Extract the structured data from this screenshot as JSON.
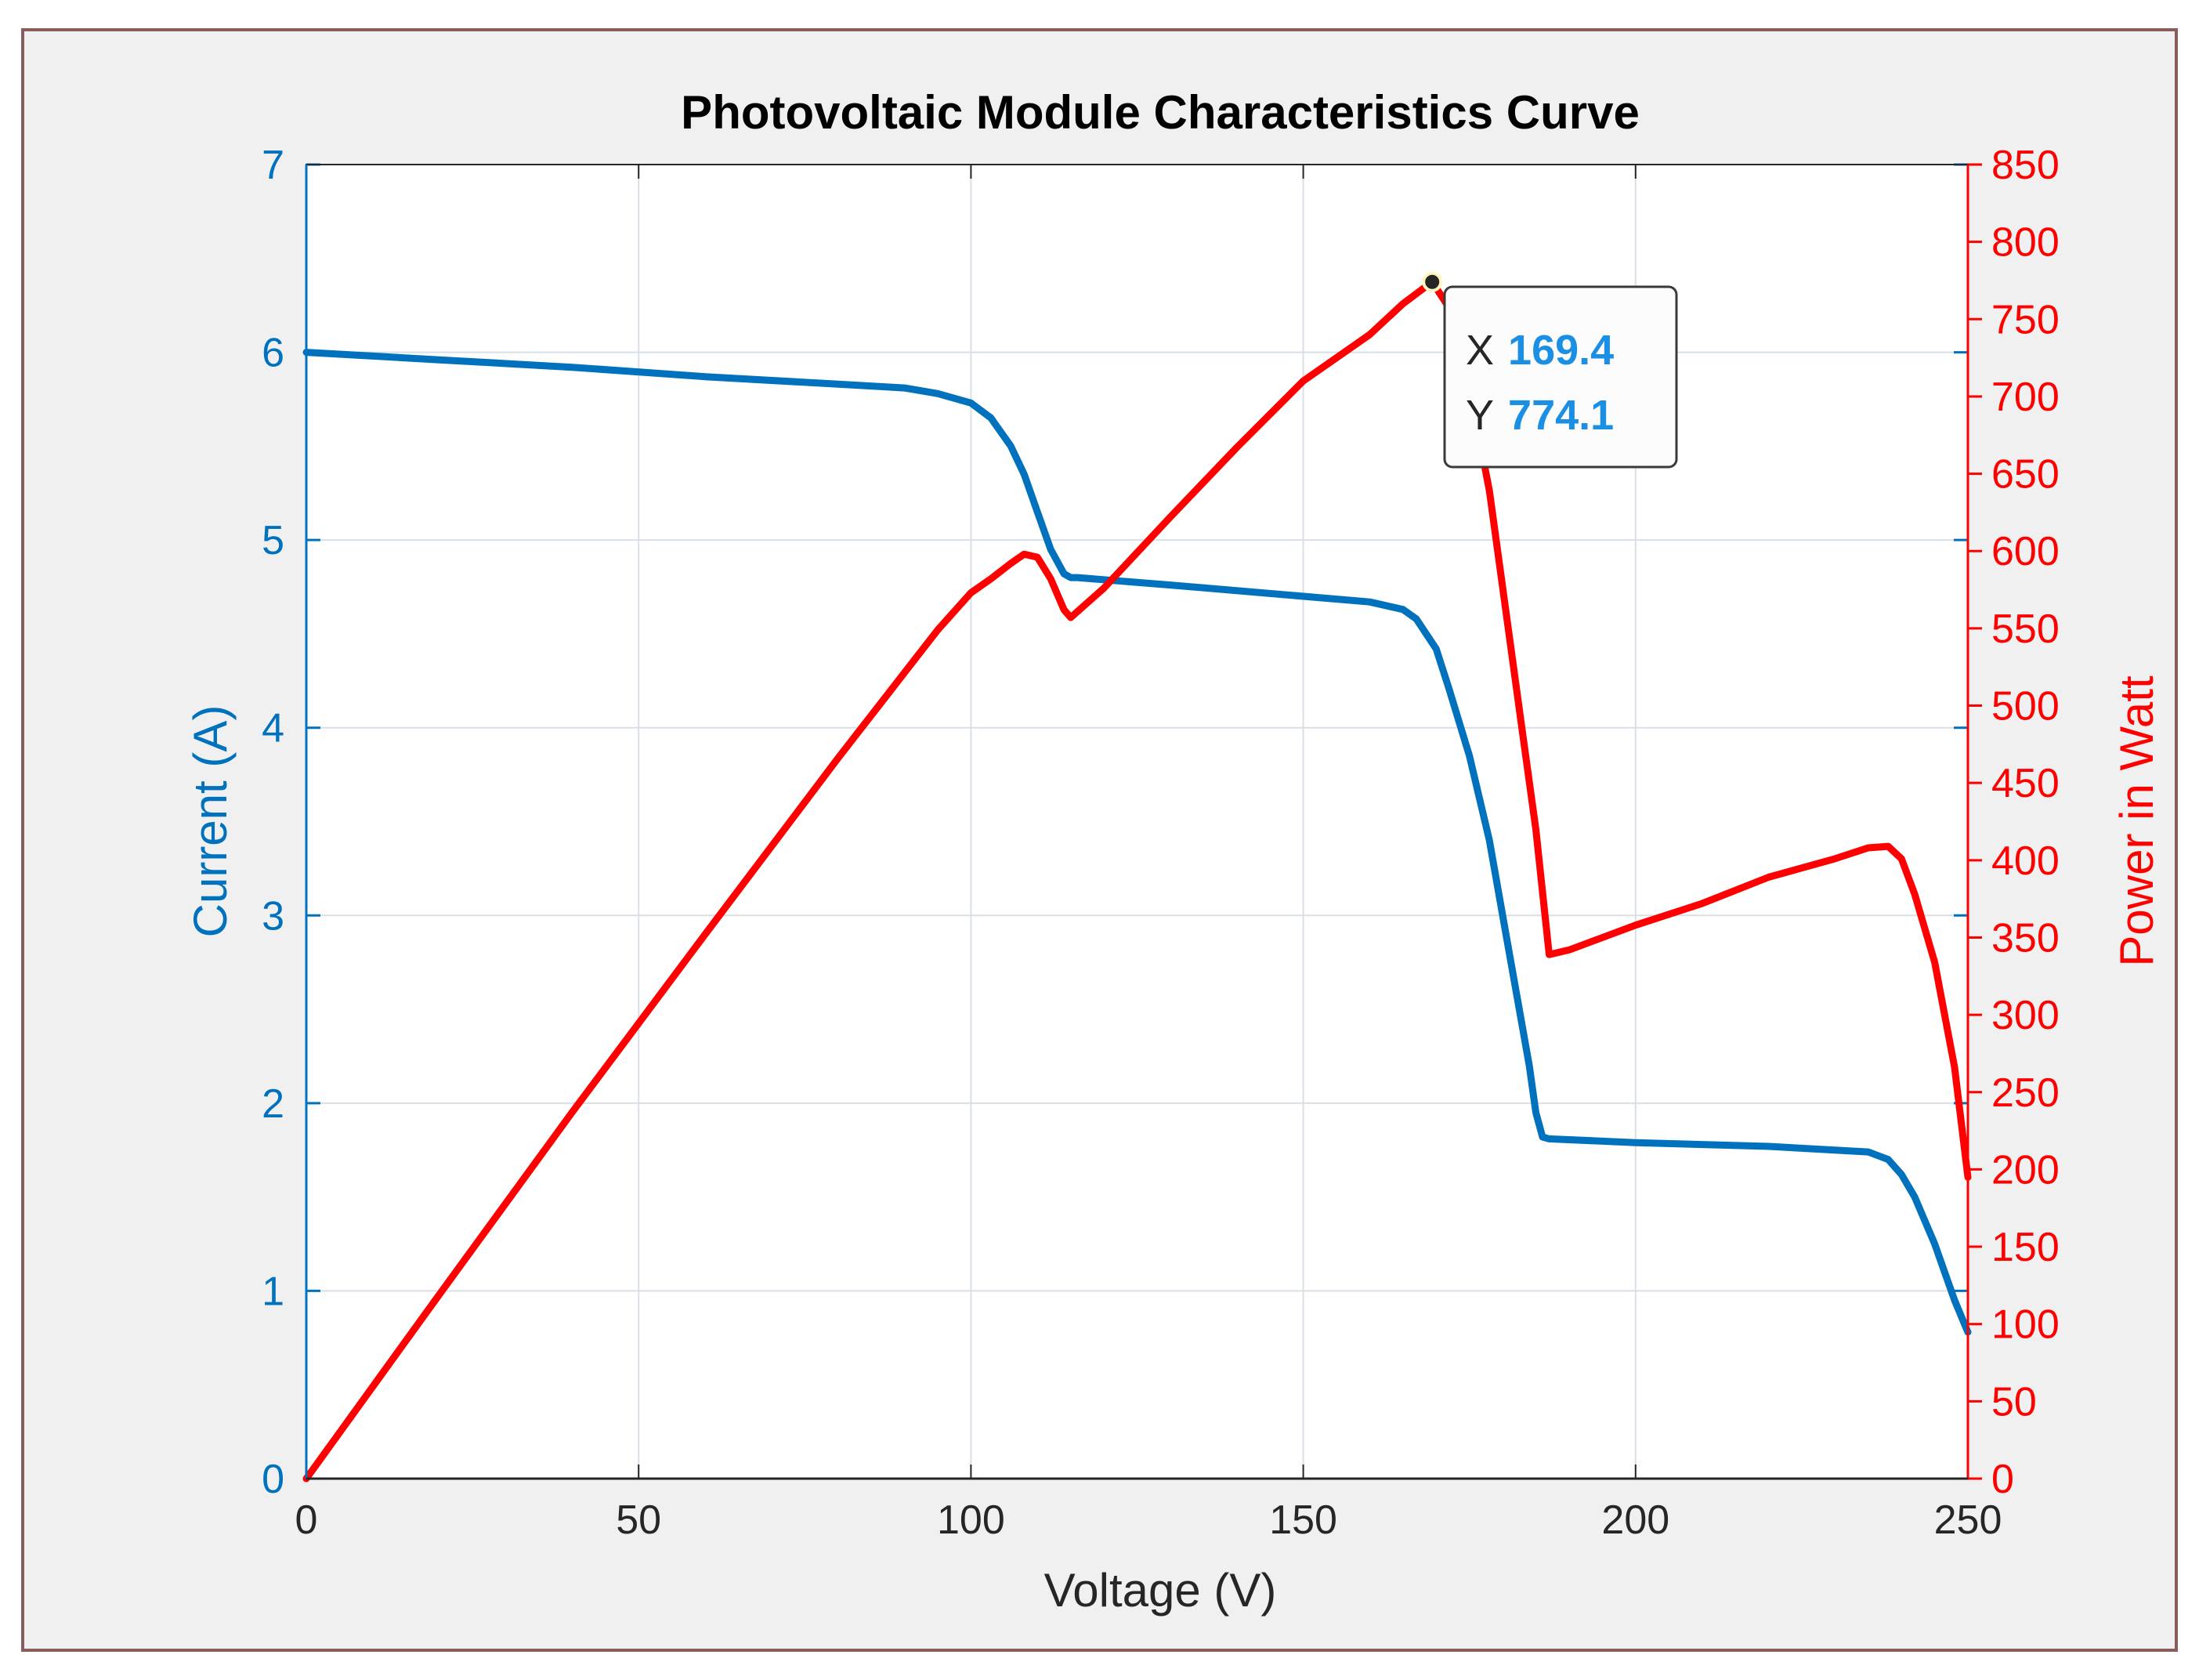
{
  "chart_data": {
    "type": "line",
    "title": "Photovoltaic Module Characteristics Curve",
    "xlabel": "Voltage (V)",
    "ylabel_left": "Current (A)",
    "ylabel_right": "Power in Watt",
    "xlim": [
      0,
      250
    ],
    "ylim_left": [
      0,
      7
    ],
    "ylim_right": [
      0,
      850
    ],
    "x_ticks": [
      0,
      50,
      100,
      150,
      200,
      250
    ],
    "y_ticks_left": [
      0,
      1,
      2,
      3,
      4,
      5,
      6,
      7
    ],
    "y_ticks_right": [
      0,
      50,
      100,
      150,
      200,
      250,
      300,
      350,
      400,
      450,
      500,
      550,
      600,
      650,
      700,
      750,
      800,
      850
    ],
    "grid": true,
    "colors": {
      "current": "#0072bd",
      "power": "#ff0000",
      "datatip_value": "#1a8fe3",
      "figure_bg": "#f0f0f0",
      "axes_bg": "#ffffff",
      "grid": "#d8dfe6"
    },
    "series": [
      {
        "name": "Current",
        "axis": "left",
        "x": [
          0,
          20,
          40,
          60,
          80,
          90,
          95,
          100,
          103,
          106,
          108,
          110,
          112,
          114,
          115,
          116,
          130,
          150,
          160,
          165,
          167,
          170,
          172,
          175,
          178,
          180,
          182,
          184,
          185,
          186,
          187,
          200,
          220,
          230,
          235,
          238,
          240,
          242,
          245,
          248,
          250
        ],
        "values": [
          6.0,
          5.96,
          5.92,
          5.87,
          5.83,
          5.81,
          5.78,
          5.73,
          5.65,
          5.5,
          5.35,
          5.15,
          4.95,
          4.82,
          4.8,
          4.8,
          4.76,
          4.7,
          4.67,
          4.63,
          4.58,
          4.42,
          4.2,
          3.85,
          3.4,
          3.0,
          2.6,
          2.2,
          1.95,
          1.82,
          1.81,
          1.79,
          1.77,
          1.75,
          1.74,
          1.7,
          1.62,
          1.5,
          1.25,
          0.95,
          0.78
        ]
      },
      {
        "name": "Power",
        "axis": "right",
        "x": [
          0,
          20,
          40,
          60,
          80,
          95,
          100,
          103,
          106,
          108,
          110,
          112,
          114,
          115,
          120,
          130,
          140,
          150,
          160,
          165,
          169.4,
          172,
          175,
          178,
          181,
          183,
          185,
          187,
          190,
          200,
          210,
          220,
          230,
          235,
          238,
          240,
          242,
          245,
          248,
          250
        ],
        "values": [
          0,
          119,
          237,
          352,
          466,
          549,
          573,
          582,
          592,
          598,
          596,
          582,
          562,
          557,
          576,
          622,
          667,
          710,
          740,
          760,
          774.1,
          757,
          706,
          639,
          545,
          482,
          420,
          339,
          342,
          358,
          372,
          389,
          401,
          408,
          409,
          401,
          378,
          334,
          266,
          195
        ]
      }
    ],
    "datatip": {
      "x_label": "X",
      "x_value": "169.4",
      "y_label": "Y",
      "y_value": "774.1",
      "point_x": 169.4,
      "point_y": 774.1
    }
  }
}
